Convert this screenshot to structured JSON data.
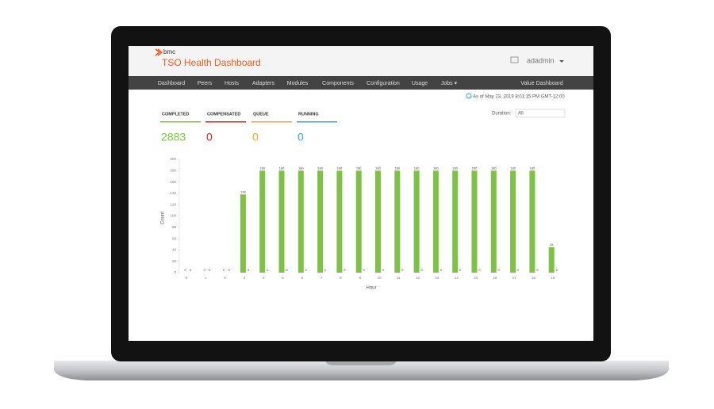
{
  "header": {
    "brand": "bmc",
    "title": "TSO Health Dashboard",
    "user": "adadmin"
  },
  "nav": [
    "Dashboard",
    "Peers",
    "Hosts",
    "Adapters",
    "Modules",
    "Components",
    "Configuration",
    "Usage",
    "Jobs ▾",
    "Value Dashboard"
  ],
  "timestamp": "As of May 23, 2019 8:01:15 PM GMT-12:00",
  "stats": [
    {
      "label": "COMPLETED",
      "value": 2883,
      "color": "#7dc243"
    },
    {
      "label": "COMPENSATED",
      "value": 0,
      "color": "#e2231a"
    },
    {
      "label": "QUEUE",
      "value": 0,
      "color": "#f5a623"
    },
    {
      "label": "RUNNING",
      "value": 0,
      "color": "#36a9d8"
    }
  ],
  "duration": {
    "label": "Duration:",
    "value": "All"
  },
  "chart_data": {
    "type": "bar",
    "x_label": "Hour",
    "y_label": "Count",
    "categories": [
      "0",
      "1",
      "2",
      "3",
      "4",
      "5",
      "6",
      "7",
      "8",
      "9",
      "10",
      "11",
      "12",
      "13",
      "14",
      "15",
      "16",
      "17",
      "18",
      "19"
    ],
    "series": [
      {
        "color": "#7dc243",
        "values": [
          0,
          0,
          0,
          138,
          180,
          180,
          180,
          180,
          180,
          180,
          180,
          180,
          180,
          180,
          180,
          180,
          180,
          180,
          180,
          45
        ]
      },
      {
        "color": "#cccccc",
        "values": [
          0,
          0,
          0,
          0,
          0,
          0,
          0,
          0,
          0,
          0,
          0,
          0,
          0,
          0,
          0,
          0,
          0,
          0,
          0,
          0
        ]
      }
    ],
    "ylim": [
      0,
      200
    ],
    "yticks": [
      0,
      20,
      40,
      60,
      80,
      100,
      120,
      140,
      160,
      180,
      200
    ]
  }
}
